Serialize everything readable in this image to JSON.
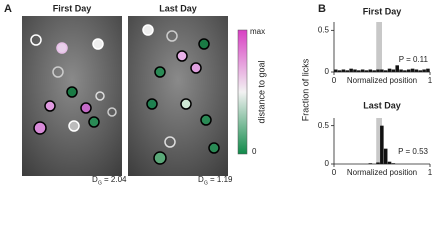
{
  "panel_a": {
    "label": "A",
    "images": [
      {
        "title": "First Day",
        "metric": {
          "symbol": "D",
          "subscript": "G",
          "text": "= 2.04"
        }
      },
      {
        "title": "Last Day",
        "metric": {
          "symbol": "D",
          "subscript": "G",
          "text": "= 1.19"
        }
      }
    ],
    "colorbar": {
      "max_label": "max",
      "label": "distance to goal",
      "min_label": "0"
    }
  },
  "panel_b": {
    "label": "B",
    "ylabel": "Fraction of licks"
  },
  "chart_data": [
    {
      "type": "histogram",
      "title": "First Day",
      "annotation": "P = 0.11",
      "xlabel": "Normalized position",
      "bins": [
        0,
        0.04,
        0.08,
        0.12,
        0.16,
        0.2,
        0.24,
        0.28,
        0.32,
        0.36,
        0.4,
        0.44,
        0.48,
        0.52,
        0.56,
        0.6,
        0.64,
        0.68,
        0.72,
        0.76,
        0.8,
        0.84,
        0.88,
        0.92,
        0.96,
        1
      ],
      "values": [
        0.03,
        0.02,
        0.03,
        0.02,
        0.04,
        0.03,
        0.02,
        0.03,
        0.02,
        0.03,
        0.02,
        0.03,
        0.03,
        0.02,
        0.04,
        0.03,
        0.08,
        0.03,
        0.02,
        0.03,
        0.04,
        0.03,
        0.02,
        0.03,
        0.04
      ],
      "color": "#111111",
      "goal_zone": [
        0.44,
        0.5
      ],
      "xlim": [
        0,
        1
      ],
      "xticks": [
        0,
        1
      ],
      "ylim": [
        0,
        0.6
      ],
      "yticks": [
        0,
        0.5
      ]
    },
    {
      "type": "histogram",
      "title": "Last Day",
      "annotation": "P = 0.53",
      "xlabel": "Normalized position",
      "bins": [
        0,
        0.04,
        0.08,
        0.12,
        0.16,
        0.2,
        0.24,
        0.28,
        0.32,
        0.36,
        0.4,
        0.44,
        0.48,
        0.52,
        0.56,
        0.6,
        0.64,
        0.68,
        0.72,
        0.76,
        0.8,
        0.84,
        0.88,
        0.92,
        0.96,
        1
      ],
      "values": [
        0,
        0,
        0,
        0,
        0,
        0,
        0,
        0,
        0,
        0.01,
        0,
        0.02,
        0.5,
        0.2,
        0.03,
        0.01,
        0,
        0,
        0,
        0,
        0,
        0,
        0,
        0,
        0
      ],
      "color": "#111111",
      "goal_zone": [
        0.44,
        0.5
      ],
      "xlim": [
        0,
        1
      ],
      "xticks": [
        0,
        1
      ],
      "ylim": [
        0,
        0.6
      ],
      "yticks": [
        0,
        0.5
      ]
    }
  ]
}
